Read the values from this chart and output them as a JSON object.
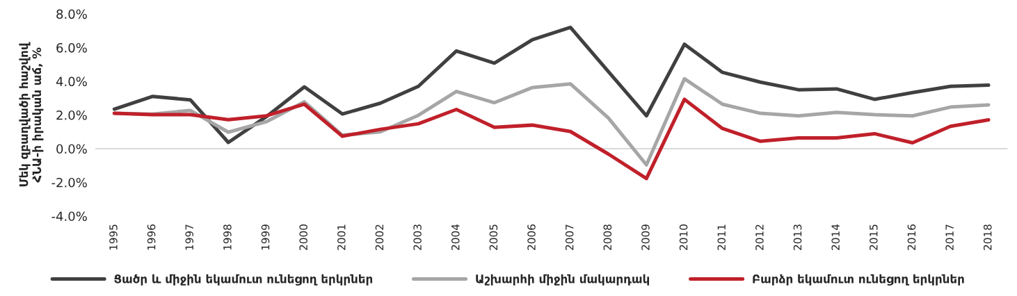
{
  "chart_data": {
    "type": "line",
    "ylabel": "Մեկ զբաղվածի հաշվով\nՀՆԱ-ի իրական աճ, %",
    "categories": [
      "1995",
      "1996",
      "1997",
      "1998",
      "1999",
      "2000",
      "2001",
      "2002",
      "2003",
      "2004",
      "2005",
      "2006",
      "2007",
      "2008",
      "2009",
      "2010",
      "2011",
      "2012",
      "2013",
      "2014",
      "2015",
      "2016",
      "2017",
      "2018"
    ],
    "series": [
      {
        "name": "Ցածր և միջին եկամուտ ունեցող երկրներ",
        "color": "#404040",
        "values": [
          2.35,
          3.1,
          2.9,
          0.37,
          1.9,
          3.67,
          2.06,
          2.7,
          3.7,
          5.8,
          5.08,
          6.47,
          7.2,
          4.57,
          1.95,
          6.2,
          4.53,
          3.95,
          3.5,
          3.55,
          2.93,
          3.33,
          3.7,
          3.77
        ]
      },
      {
        "name": "Աշխարհի միջին մակարդակ",
        "color": "#a6a6a6",
        "values": [
          2.1,
          2.05,
          2.27,
          0.98,
          1.6,
          2.78,
          0.8,
          1.0,
          1.98,
          3.4,
          2.73,
          3.63,
          3.85,
          1.82,
          -0.96,
          4.15,
          2.64,
          2.1,
          1.95,
          2.15,
          2.02,
          1.95,
          2.47,
          2.6
        ]
      },
      {
        "name": "Բարձր եկամուտ ունեցող երկրներ",
        "color": "#c0202a",
        "values": [
          2.1,
          2.02,
          2.02,
          1.72,
          1.95,
          2.64,
          0.74,
          1.15,
          1.48,
          2.33,
          1.27,
          1.4,
          1.02,
          -0.32,
          -1.77,
          2.93,
          1.2,
          0.44,
          0.64,
          0.64,
          0.89,
          0.35,
          1.33,
          1.71
        ]
      }
    ],
    "ylim": [
      -4,
      8
    ],
    "yticks": [
      {
        "value": -4,
        "label": "-4.0%"
      },
      {
        "value": -2,
        "label": "-2.0%"
      },
      {
        "value": 0,
        "label": "0.0%"
      },
      {
        "value": 2,
        "label": "2.0%"
      },
      {
        "value": 4,
        "label": "4.0%"
      },
      {
        "value": 6,
        "label": "6.0%"
      },
      {
        "value": 8,
        "label": "8.0%"
      }
    ],
    "ref_lines": [
      {
        "axis": "y",
        "value": 0,
        "color": "#d9d9d9"
      }
    ],
    "grid": false,
    "legend": "bottom",
    "marker": "none",
    "line_style": "solid"
  }
}
